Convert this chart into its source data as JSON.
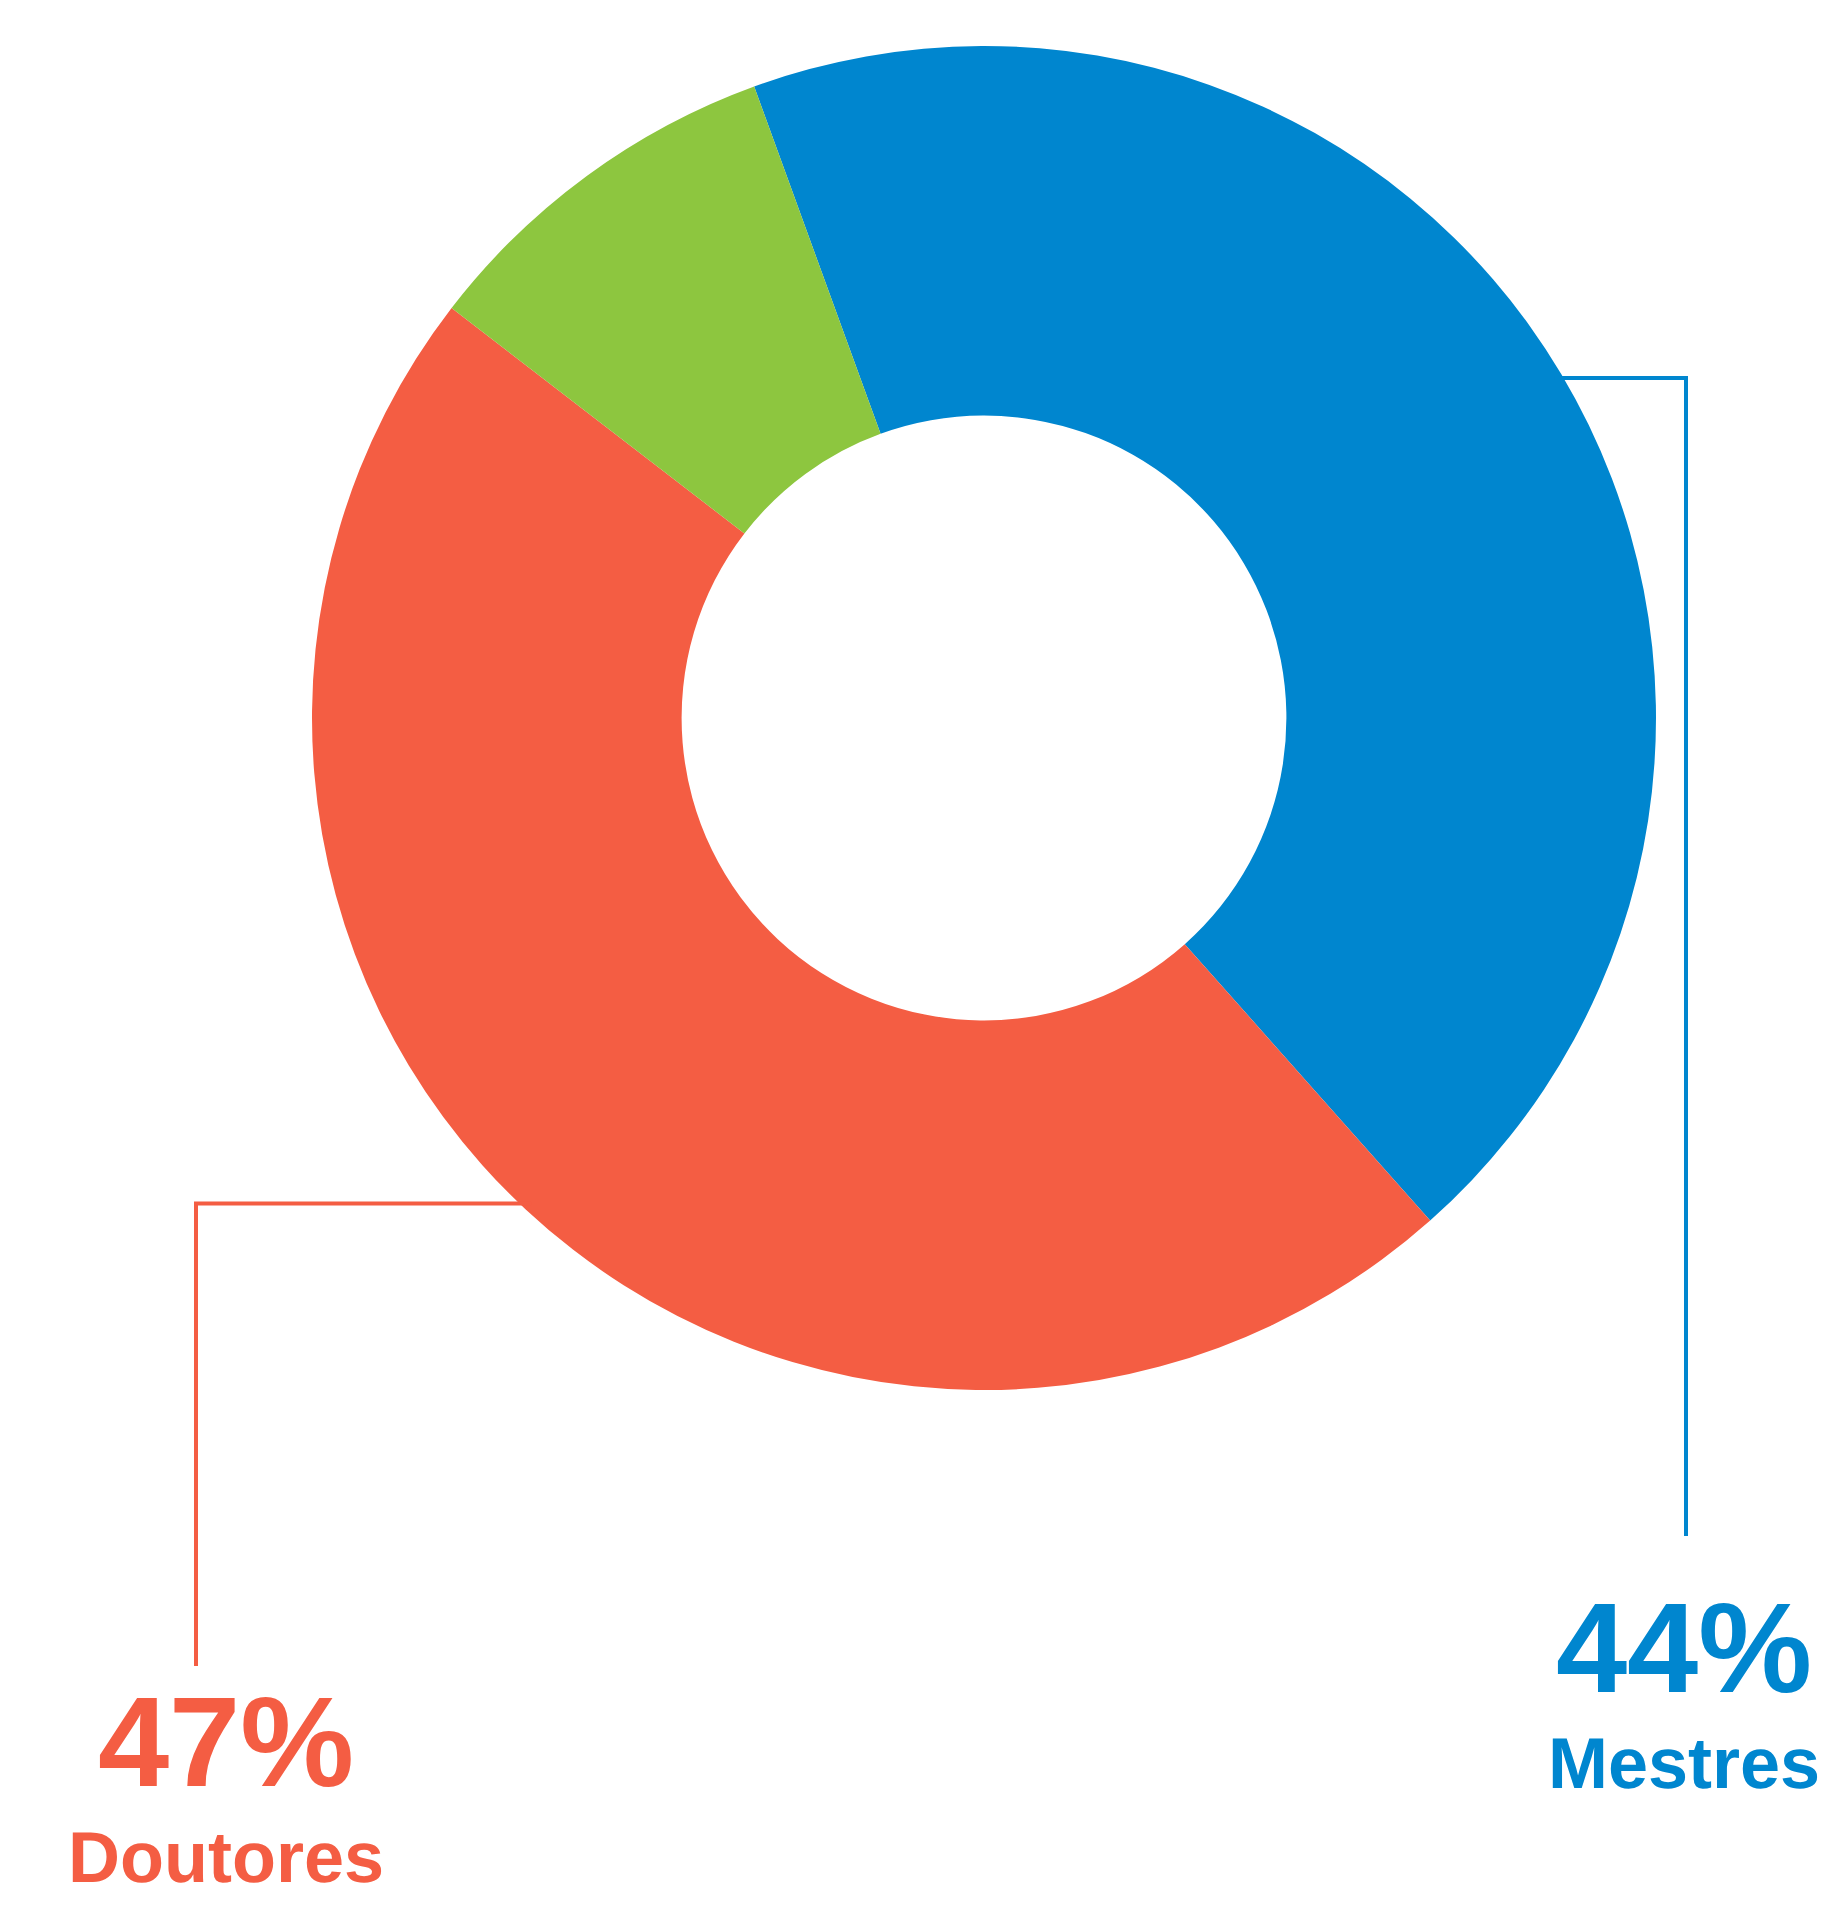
{
  "chart_data": {
    "type": "donut",
    "categories": [
      "Mestres",
      "Doutores",
      null
    ],
    "values": [
      44,
      47,
      9
    ],
    "colors": [
      "#0086cf",
      "#f45d43",
      "#8dc63f"
    ],
    "value_labels": [
      "44%",
      "47%",
      null
    ],
    "legend": false
  }
}
